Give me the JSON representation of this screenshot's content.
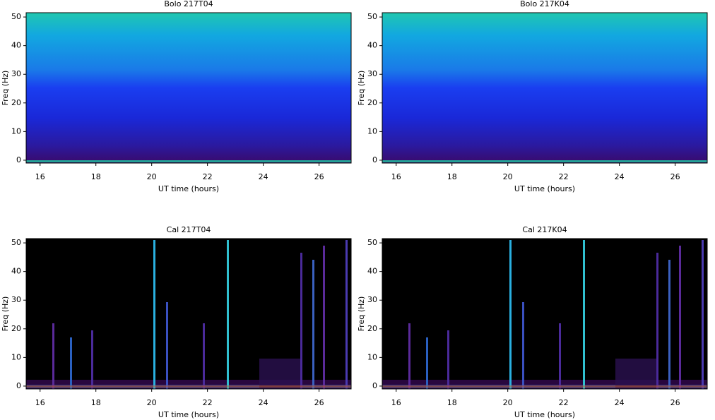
{
  "chart_data": [
    {
      "type": "spectrogram",
      "title": "Bolo 217T04",
      "xlabel": "UT time (hours)",
      "ylabel": "Freq (Hz)",
      "style": "bolo",
      "xlim": [
        15.5,
        27.15
      ],
      "xticks": [
        16,
        18,
        20,
        22,
        24,
        26
      ],
      "ylim": [
        -1,
        51.5
      ],
      "yticks": [
        0,
        10,
        20,
        30,
        40,
        50
      ]
    },
    {
      "type": "spectrogram",
      "title": "Bolo 217K04",
      "xlabel": "UT time (hours)",
      "ylabel": "Freq (Hz)",
      "style": "bolo",
      "xlim": [
        15.5,
        27.15
      ],
      "xticks": [
        16,
        18,
        20,
        22,
        24,
        26
      ],
      "ylim": [
        -1,
        51.5
      ],
      "yticks": [
        0,
        10,
        20,
        30,
        40,
        50
      ]
    },
    {
      "type": "spectrogram",
      "title": "Cal 217T04",
      "xlabel": "UT time (hours)",
      "ylabel": "Freq (Hz)",
      "style": "cal",
      "xlim": [
        15.5,
        27.15
      ],
      "xticks": [
        16,
        18,
        20,
        22,
        24,
        26
      ],
      "ylim": [
        -1,
        51.5
      ],
      "yticks": [
        0,
        10,
        20,
        30,
        40,
        50
      ]
    },
    {
      "type": "spectrogram",
      "title": "Cal 217K04",
      "xlabel": "UT time (hours)",
      "ylabel": "Freq (Hz)",
      "style": "cal",
      "xlim": [
        15.5,
        27.15
      ],
      "xticks": [
        16,
        18,
        20,
        22,
        24,
        26
      ],
      "ylim": [
        -1,
        51.5
      ],
      "yticks": [
        0,
        10,
        20,
        30,
        40,
        50
      ]
    }
  ]
}
